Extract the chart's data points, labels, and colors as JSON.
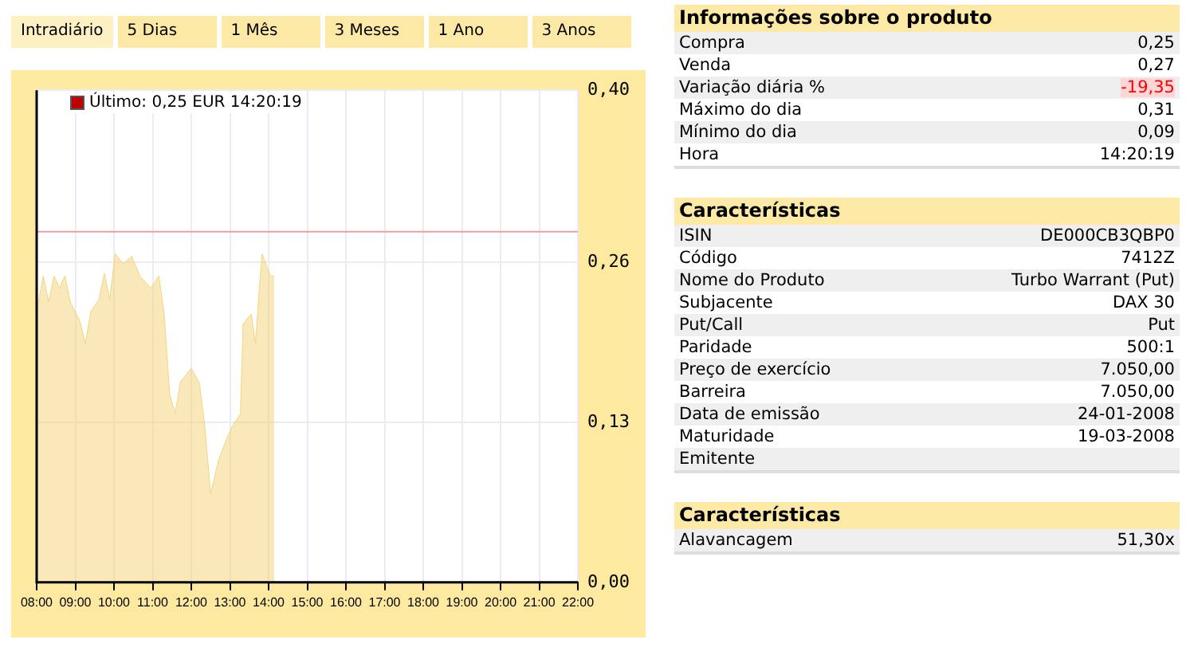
{
  "chart_data": [
    {
      "type": "area",
      "annotations": [
        "Intradiário",
        "5 Dias",
        "1 Mês",
        "3 Meses",
        "1 Ano",
        "3 Anos",
        "Último: 0,25 EUR 14:20:19"
      ],
      "series": [
        {
          "color": "#f3d67e",
          "x": [
            8.0,
            8.17,
            8.31,
            8.45,
            8.59,
            8.73,
            8.87,
            9.12,
            9.26,
            9.4,
            9.61,
            9.75,
            9.89,
            10.03,
            10.24,
            10.46,
            10.67,
            10.95,
            11.16,
            11.3,
            11.44,
            11.58,
            11.72,
            12.0,
            12.21,
            12.35,
            12.5,
            12.71,
            12.92,
            13.06,
            13.27,
            13.34,
            13.55,
            13.66,
            13.76,
            13.83,
            14.04,
            14.15
          ],
          "values": [
            0.22,
            0.249,
            0.228,
            0.249,
            0.239,
            0.249,
            0.228,
            0.212,
            0.194,
            0.22,
            0.23,
            0.251,
            0.23,
            0.267,
            0.259,
            0.265,
            0.249,
            0.239,
            0.249,
            0.218,
            0.153,
            0.137,
            0.163,
            0.174,
            0.162,
            0.127,
            0.072,
            0.1,
            0.117,
            0.127,
            0.137,
            0.21,
            0.218,
            0.194,
            0.239,
            0.267,
            0.249,
            0.249
          ]
        }
      ],
      "xlim": [
        8,
        22
      ],
      "xticks": [
        {
          "value": 8,
          "label": "08:00"
        },
        {
          "value": 9,
          "label": "09:00"
        },
        {
          "value": 10,
          "label": "10:00"
        },
        {
          "value": 11,
          "label": "11:00"
        },
        {
          "value": 12,
          "label": "12:00"
        },
        {
          "value": 13,
          "label": "13:00"
        },
        {
          "value": 14,
          "label": "14:00"
        },
        {
          "value": 15,
          "label": "15:00"
        },
        {
          "value": 16,
          "label": "16:00"
        },
        {
          "value": 17,
          "label": "17:00"
        },
        {
          "value": 18,
          "label": "18:00"
        },
        {
          "value": 19,
          "label": "19:00"
        },
        {
          "value": 20,
          "label": "20:00"
        },
        {
          "value": 21,
          "label": "21:00"
        },
        {
          "value": 22,
          "label": "22:00"
        }
      ],
      "ylim": [
        0,
        0.4
      ],
      "yticks": [
        {
          "value": 0,
          "label": "0,00"
        },
        {
          "value": 0.13,
          "label": "0,13"
        },
        {
          "value": 0.26,
          "label": "0,26"
        },
        {
          "value": 0.4,
          "label": "0,40"
        }
      ],
      "ref_lines": [
        {
          "axis": "y",
          "value": 0.285,
          "color": "#e8a0a0"
        }
      ],
      "grid": true
    },
    {
      "type": "other",
      "title": "Informações sobre o produto",
      "categories": [
        "Compra",
        "Venda",
        "Variação diária %",
        "Máximo do dia",
        "Mínimo do dia",
        "Hora"
      ],
      "value_labels": [
        "0,25",
        "0,27",
        "-19,35",
        "0,31",
        "0,09",
        "14:20:19"
      ],
      "colors": [
        null,
        null,
        "#ff0000",
        null,
        null,
        null
      ]
    },
    {
      "type": "other",
      "title": "Características",
      "categories": [
        "ISIN",
        "Código",
        "Nome do Produto",
        "Subjacente",
        "Put/Call",
        "Paridade",
        "Preço de exercício",
        "Barreira",
        "Data de emissão",
        "Maturidade",
        "Emitente"
      ],
      "value_labels": [
        "DE000CB3QBP0",
        "7412Z",
        "Turbo Warrant (Put)",
        "DAX 30",
        "Put",
        "500:1",
        "7.050,00",
        "7.050,00",
        "24-01-2008",
        "19-03-2008",
        null
      ]
    },
    {
      "type": "other",
      "title": "Características",
      "categories": [
        "Alavancagem"
      ],
      "value_labels": [
        "51,30x"
      ]
    }
  ]
}
